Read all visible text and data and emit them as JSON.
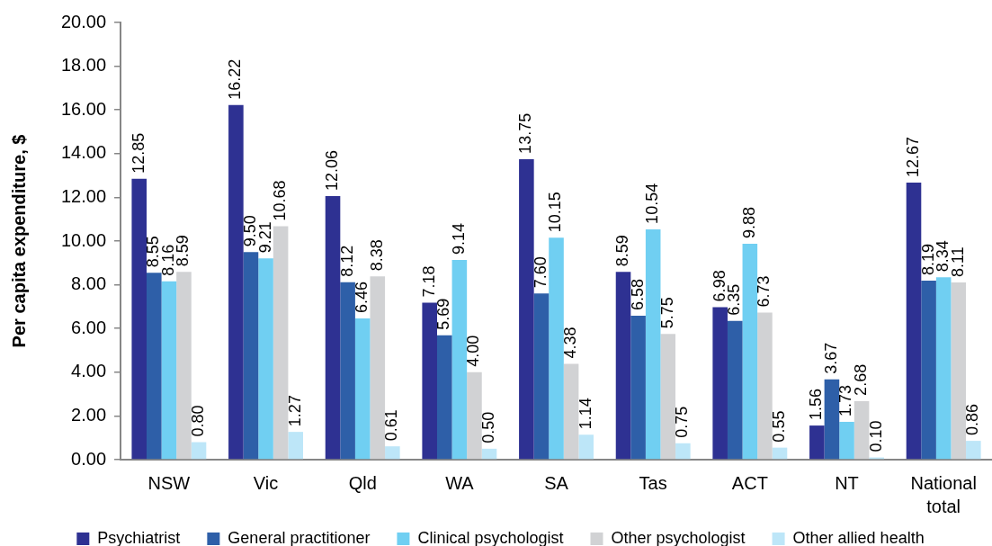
{
  "chart_data": {
    "type": "bar",
    "ylabel": "Per capita expenditure, $",
    "categories": [
      "NSW",
      "Vic",
      "Qld",
      "WA",
      "SA",
      "Tas",
      "ACT",
      "NT",
      "National total"
    ],
    "series": [
      {
        "name": "Psychiatrist",
        "color": "#2e3192",
        "values": [
          12.85,
          16.22,
          12.06,
          7.18,
          13.75,
          8.59,
          6.98,
          1.56,
          12.67
        ],
        "value_labels": [
          "12.85",
          "16.22",
          "12.06",
          "7.18",
          "13.75",
          "8.59",
          "6.98",
          "1.56",
          "12.67"
        ]
      },
      {
        "name": "General practitioner",
        "color": "#2e5fa8",
        "values": [
          8.55,
          9.5,
          8.12,
          5.69,
          7.6,
          6.58,
          6.35,
          3.67,
          8.19
        ],
        "value_labels": [
          "8.55",
          "9.50",
          "8.12",
          "5.69",
          "7.60",
          "6.58",
          "6.35",
          "3.67",
          "8.19"
        ]
      },
      {
        "name": "Clinical psychologist",
        "color": "#70cff2",
        "values": [
          8.16,
          9.21,
          6.46,
          9.14,
          10.15,
          10.54,
          9.88,
          1.73,
          8.34
        ],
        "value_labels": [
          "8.16",
          "9.21",
          "6.46",
          "9.14",
          "10.15",
          "10.54",
          "9.88",
          "1.73",
          "8.34"
        ]
      },
      {
        "name": "Other psychologist",
        "color": "#d1d2d4",
        "values": [
          8.59,
          10.68,
          8.38,
          4.0,
          4.38,
          5.75,
          6.73,
          2.68,
          8.11
        ],
        "value_labels": [
          "8.59",
          "10.68",
          "8.38",
          "4.00",
          "4.38",
          "5.75",
          "6.73",
          "2.68",
          "8.11"
        ]
      },
      {
        "name": "Other allied health",
        "color": "#bde6f8",
        "values": [
          0.8,
          1.27,
          0.61,
          0.5,
          1.14,
          0.75,
          0.55,
          0.1,
          0.86
        ],
        "value_labels": [
          "0.80",
          "1.27",
          "0.61",
          "0.50",
          "1.14",
          "0.75",
          "0.55",
          "0.10",
          "0.86"
        ]
      }
    ],
    "ylim": [
      0,
      20
    ],
    "yticks": [
      {
        "value": 0,
        "label": "0.00"
      },
      {
        "value": 2,
        "label": "2.00"
      },
      {
        "value": 4,
        "label": "4.00"
      },
      {
        "value": 6,
        "label": "6.00"
      },
      {
        "value": 8,
        "label": "8.00"
      },
      {
        "value": 10,
        "label": "10.00"
      },
      {
        "value": 12,
        "label": "12.00"
      },
      {
        "value": 14,
        "label": "14.00"
      },
      {
        "value": 16,
        "label": "16.00"
      },
      {
        "value": 18,
        "label": "18.00"
      },
      {
        "value": 20,
        "label": "20.00"
      }
    ],
    "grid": false,
    "legend": "bottom"
  }
}
